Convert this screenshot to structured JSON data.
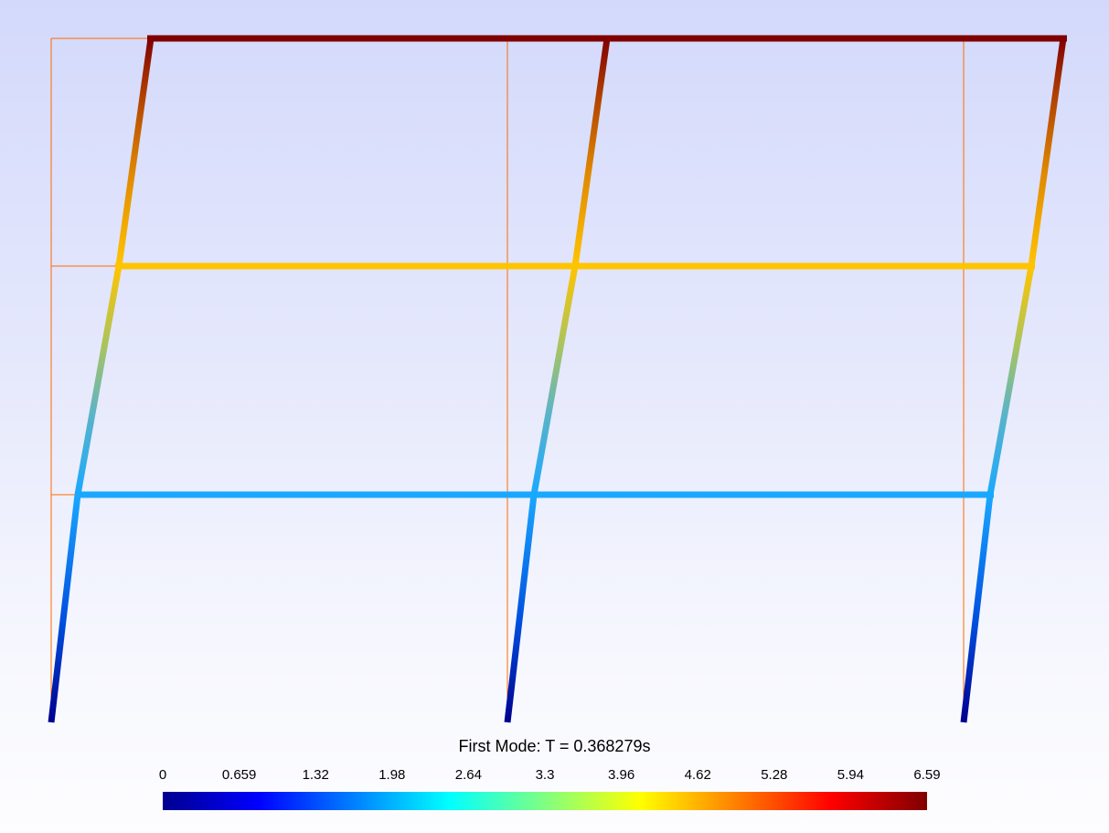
{
  "title": "First Mode: T = 0.368279s",
  "colorbar": {
    "ticks": [
      "0",
      "0.659",
      "1.32",
      "1.98",
      "2.64",
      "3.3",
      "3.96",
      "4.62",
      "5.28",
      "5.94",
      "6.59"
    ],
    "colormap": "jet",
    "colors": [
      "#00008f",
      "#0000ff",
      "#0080ff",
      "#00ffff",
      "#80ff80",
      "#ffff00",
      "#ff8000",
      "#ff0000",
      "#800000"
    ]
  },
  "colors": {
    "undeformed": "#ff6a00",
    "background_top": "#d3d9fb",
    "background_bottom": "#fdfdff"
  }
}
